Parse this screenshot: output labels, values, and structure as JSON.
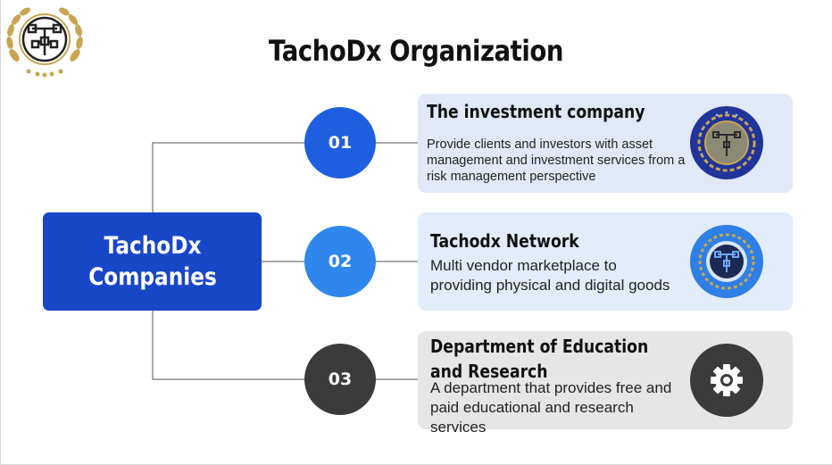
{
  "title": "TachoDx Organization",
  "root": {
    "line1": "TachoDx",
    "line2": "Companies"
  },
  "items": [
    {
      "number": "01",
      "title": "The investment company",
      "description": "Provide clients and investors with asset management and investment services from a risk management perspective",
      "icon": "emblem-icon"
    },
    {
      "number": "02",
      "title": "Tachodx Network",
      "description": "Multi vendor marketplace to providing physical and digital goods",
      "icon": "network-emblem-icon"
    },
    {
      "number": "03",
      "title": "Department of Education and Research",
      "description": "A department that provides free and paid educational and research services",
      "icon": "gear-icon"
    }
  ],
  "colors": {
    "root_box": "#1746c7",
    "circle_01": "#1d5fe0",
    "circle_02": "#2f87ee",
    "circle_03": "#3b3b3b",
    "card_01": "#e1e9f9",
    "card_02": "#e2ecfa",
    "card_03": "#e6e6e6"
  }
}
